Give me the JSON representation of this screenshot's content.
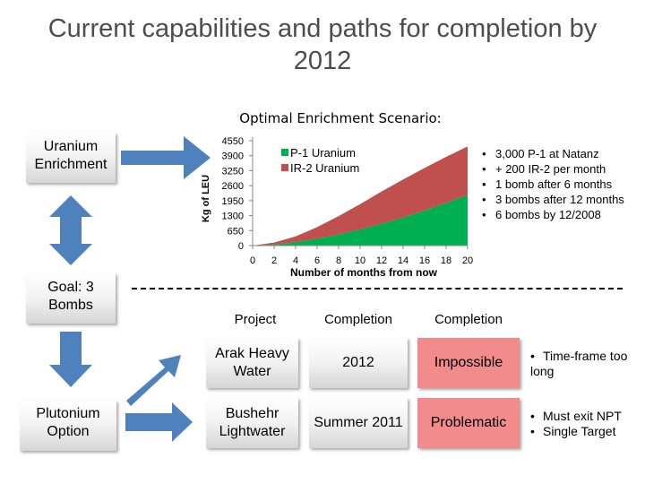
{
  "title": "Current capabilities and paths for completion by 2012",
  "boxes": {
    "uranium": "Uranium Enrichment",
    "goal": "Goal: 3 Bombs",
    "plutonium": "Plutonium Option"
  },
  "chart_data": {
    "type": "area",
    "stacked": true,
    "title": "Optimal Enrichment Scenario:",
    "xlabel": "Number of months from now",
    "ylabel": "Kg of LEU",
    "x": [
      0,
      2,
      4,
      6,
      8,
      10,
      12,
      14,
      16,
      18,
      20
    ],
    "yticks": [
      0,
      650,
      1300,
      1950,
      2600,
      3250,
      3900,
      4550
    ],
    "ylim": [
      0,
      4550
    ],
    "xlim": [
      0,
      20
    ],
    "legend_position": "top-left",
    "series": [
      {
        "name": "P-1 Uranium",
        "color": "#00b050",
        "values": [
          0,
          50,
          150,
          300,
          480,
          700,
          950,
          1220,
          1520,
          1850,
          2200
        ]
      },
      {
        "name": "IR-2 Uranium",
        "color": "#c0504d",
        "values": [
          0,
          80,
          250,
          500,
          800,
          1100,
          1400,
          1650,
          1850,
          2000,
          2100
        ]
      }
    ]
  },
  "bullets": [
    "3,000 P-1 at Natanz",
    "+ 200 IR-2 per month",
    "1 bomb after 6 months",
    "3 bombs after 12 months",
    "6 bombs by 12/2008"
  ],
  "table": {
    "headers": {
      "project": "Project",
      "completion1": "Completion",
      "completion2": "Completion"
    },
    "rows": [
      {
        "project": "Arak Heavy Water",
        "date": "2012",
        "status": "Impossible",
        "notes": [
          "Time-frame too long"
        ]
      },
      {
        "project": "Bushehr Lightwater",
        "date": "Summer 2011",
        "status": "Problematic",
        "notes": [
          "Must exit NPT",
          "Single Target"
        ]
      }
    ]
  },
  "colors": {
    "arrow": "#4f81bd",
    "status_fill": "#f28b8b"
  }
}
